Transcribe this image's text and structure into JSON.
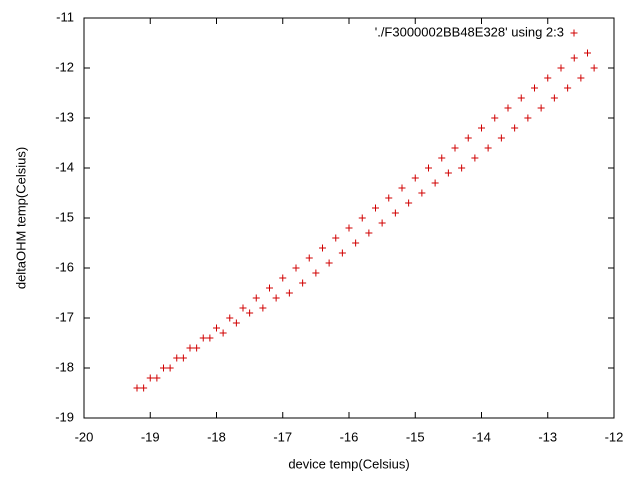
{
  "chart_data": {
    "type": "scatter",
    "xlabel": "device temp(Celsius)",
    "ylabel": "deltaOHM temp(Celsius)",
    "series": [
      {
        "name": "'./F3000002BB48E328' using 2:3",
        "color": "#d00000",
        "x": [
          -19.2,
          -19.0,
          -18.8,
          -18.6,
          -18.4,
          -18.2,
          -18.0,
          -17.8,
          -17.6,
          -17.4,
          -17.2,
          -17.0,
          -16.8,
          -16.6,
          -16.4,
          -16.2,
          -16.0,
          -15.8,
          -15.6,
          -15.4,
          -15.2,
          -15.0,
          -14.8,
          -14.6,
          -14.4,
          -14.2,
          -14.0,
          -13.8,
          -13.6,
          -13.4,
          -13.2,
          -13.0,
          -12.8,
          -12.6,
          -12.4,
          -19.1,
          -18.9,
          -18.7,
          -18.5,
          -18.3,
          -18.1,
          -17.9,
          -17.7,
          -17.5,
          -17.3,
          -17.1,
          -16.9,
          -16.7,
          -16.5,
          -16.3,
          -16.1,
          -15.9,
          -15.7,
          -15.5,
          -15.3,
          -15.1,
          -14.9,
          -14.7,
          -14.5,
          -14.3,
          -14.1,
          -13.9,
          -13.7,
          -13.5,
          -13.3,
          -13.1,
          -12.9,
          -12.7,
          -12.5,
          -12.3
        ],
        "values": [
          -18.4,
          -18.2,
          -18.0,
          -17.8,
          -17.6,
          -17.4,
          -17.2,
          -17.0,
          -16.8,
          -16.6,
          -16.4,
          -16.2,
          -16.0,
          -15.8,
          -15.6,
          -15.4,
          -15.2,
          -15.0,
          -14.8,
          -14.6,
          -14.4,
          -14.2,
          -14.0,
          -13.8,
          -13.6,
          -13.4,
          -13.2,
          -13.0,
          -12.8,
          -12.6,
          -12.4,
          -12.2,
          -12.0,
          -11.8,
          -11.7,
          -18.4,
          -18.2,
          -18.0,
          -17.8,
          -17.6,
          -17.4,
          -17.3,
          -17.1,
          -16.9,
          -16.8,
          -16.6,
          -16.5,
          -16.3,
          -16.1,
          -15.9,
          -15.7,
          -15.5,
          -15.3,
          -15.1,
          -14.9,
          -14.7,
          -14.5,
          -14.3,
          -14.1,
          -14.0,
          -13.8,
          -13.6,
          -13.4,
          -13.2,
          -13.0,
          -12.8,
          -12.6,
          -12.4,
          -12.2,
          -12.0
        ]
      }
    ],
    "xlim": [
      -20,
      -12
    ],
    "xticks": [
      -20,
      -19,
      -18,
      -17,
      -16,
      -15,
      -14,
      -13,
      -12
    ],
    "ylim": [
      -19,
      -11
    ],
    "yticks": [
      -19,
      -18,
      -17,
      -16,
      -15,
      -14,
      -13,
      -12,
      -11
    ],
    "grid": false,
    "legend": "top-right"
  }
}
